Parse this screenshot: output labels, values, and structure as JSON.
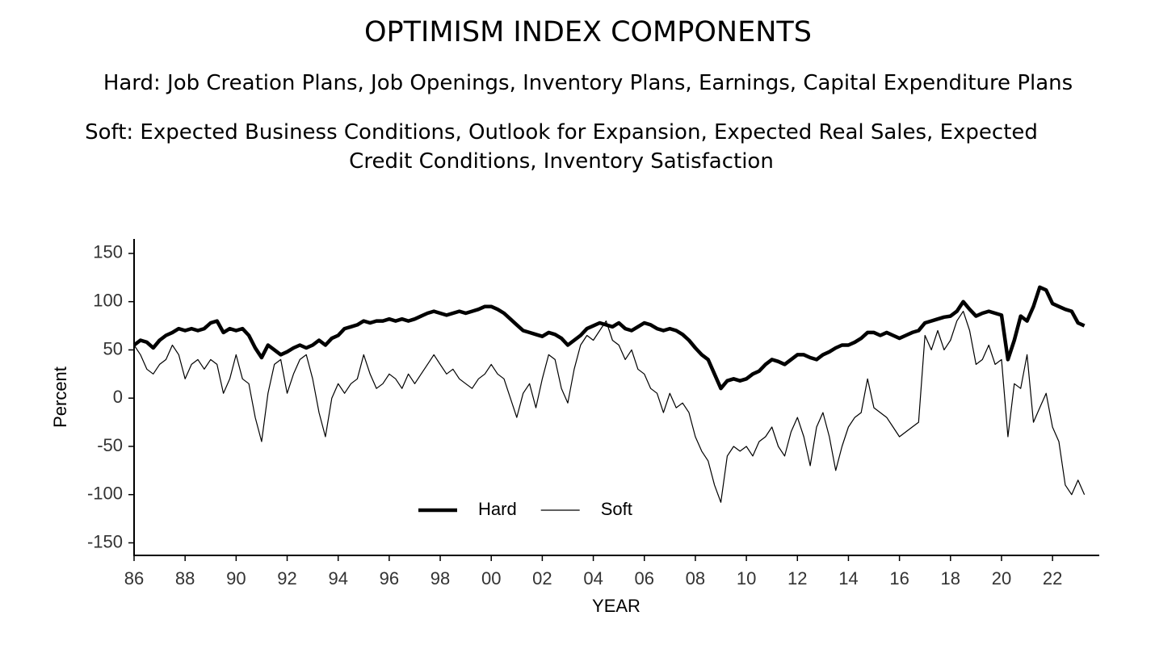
{
  "chart_data": {
    "type": "line",
    "title": "OPTIMISM INDEX COMPONENTS",
    "subtitle": [
      "Hard: Job Creation Plans, Job Openings, Inventory Plans, Earnings, Capital Expenditure Plans",
      "Soft: Expected Business Conditions, Outlook for Expansion, Expected Real Sales, Expected Credit Conditions, Inventory Satisfaction"
    ],
    "x_label": "YEAR",
    "y_label": "Percent",
    "xlim": [
      1986,
      2023.8
    ],
    "ylim": [
      -163,
      165
    ],
    "xticks": [
      {
        "value": 1986,
        "label": "86"
      },
      {
        "value": 1988,
        "label": "88"
      },
      {
        "value": 1990,
        "label": "90"
      },
      {
        "value": 1992,
        "label": "92"
      },
      {
        "value": 1994,
        "label": "94"
      },
      {
        "value": 1996,
        "label": "96"
      },
      {
        "value": 1998,
        "label": "98"
      },
      {
        "value": 2000,
        "label": "00"
      },
      {
        "value": 2002,
        "label": "02"
      },
      {
        "value": 2004,
        "label": "04"
      },
      {
        "value": 2006,
        "label": "06"
      },
      {
        "value": 2008,
        "label": "08"
      },
      {
        "value": 2010,
        "label": "10"
      },
      {
        "value": 2012,
        "label": "12"
      },
      {
        "value": 2014,
        "label": "14"
      },
      {
        "value": 2016,
        "label": "16"
      },
      {
        "value": 2018,
        "label": "18"
      },
      {
        "value": 2020,
        "label": "20"
      },
      {
        "value": 2022,
        "label": "22"
      }
    ],
    "yticks": [
      150,
      100,
      50,
      0,
      -50,
      -100,
      -150
    ],
    "grid": false,
    "legend": "bottom",
    "x": [
      1986,
      1986.25,
      1986.5,
      1986.75,
      1987,
      1987.25,
      1987.5,
      1987.75,
      1988,
      1988.25,
      1988.5,
      1988.75,
      1989,
      1989.25,
      1989.5,
      1989.75,
      1990,
      1990.25,
      1990.5,
      1990.75,
      1991,
      1991.25,
      1991.5,
      1991.75,
      1992,
      1992.25,
      1992.5,
      1992.75,
      1993,
      1993.25,
      1993.5,
      1993.75,
      1994,
      1994.25,
      1994.5,
      1994.75,
      1995,
      1995.25,
      1995.5,
      1995.75,
      1996,
      1996.25,
      1996.5,
      1996.75,
      1997,
      1997.25,
      1997.5,
      1997.75,
      1998,
      1998.25,
      1998.5,
      1998.75,
      1999,
      1999.25,
      1999.5,
      1999.75,
      2000,
      2000.25,
      2000.5,
      2000.75,
      2001,
      2001.25,
      2001.5,
      2001.75,
      2002,
      2002.25,
      2002.5,
      2002.75,
      2003,
      2003.25,
      2003.5,
      2003.75,
      2004,
      2004.25,
      2004.5,
      2004.75,
      2005,
      2005.25,
      2005.5,
      2005.75,
      2006,
      2006.25,
      2006.5,
      2006.75,
      2007,
      2007.25,
      2007.5,
      2007.75,
      2008,
      2008.25,
      2008.5,
      2008.75,
      2009,
      2009.25,
      2009.5,
      2009.75,
      2010,
      2010.25,
      2010.5,
      2010.75,
      2011,
      2011.25,
      2011.5,
      2011.75,
      2012,
      2012.25,
      2012.5,
      2012.75,
      2013,
      2013.25,
      2013.5,
      2013.75,
      2014,
      2014.25,
      2014.5,
      2014.75,
      2015,
      2015.25,
      2015.5,
      2015.75,
      2016,
      2016.25,
      2016.5,
      2016.75,
      2017,
      2017.25,
      2017.5,
      2017.75,
      2018,
      2018.25,
      2018.5,
      2018.75,
      2019,
      2019.25,
      2019.5,
      2019.75,
      2020,
      2020.25,
      2020.5,
      2020.75,
      2021,
      2021.25,
      2021.5,
      2021.75,
      2022,
      2022.25,
      2022.5,
      2022.75,
      2023,
      2023.25
    ],
    "series": [
      {
        "name": "Hard",
        "color": "#000000",
        "line_width": 4.5,
        "values": [
          55,
          60,
          58,
          52,
          60,
          65,
          68,
          72,
          70,
          72,
          70,
          72,
          78,
          80,
          68,
          72,
          70,
          72,
          65,
          52,
          42,
          55,
          50,
          45,
          48,
          52,
          55,
          52,
          55,
          60,
          55,
          62,
          65,
          72,
          74,
          76,
          80,
          78,
          80,
          80,
          82,
          80,
          82,
          80,
          82,
          85,
          88,
          90,
          88,
          86,
          88,
          90,
          88,
          90,
          92,
          95,
          95,
          92,
          88,
          82,
          76,
          70,
          68,
          66,
          64,
          68,
          66,
          62,
          55,
          60,
          65,
          72,
          75,
          78,
          76,
          74,
          78,
          72,
          70,
          74,
          78,
          76,
          72,
          70,
          72,
          70,
          66,
          60,
          52,
          45,
          40,
          25,
          10,
          18,
          20,
          18,
          20,
          25,
          28,
          35,
          40,
          38,
          35,
          40,
          45,
          45,
          42,
          40,
          45,
          48,
          52,
          55,
          55,
          58,
          62,
          68,
          68,
          65,
          68,
          65,
          62,
          65,
          68,
          70,
          78,
          80,
          82,
          84,
          85,
          90,
          100,
          92,
          85,
          88,
          90,
          88,
          86,
          40,
          60,
          85,
          80,
          95,
          115,
          112,
          98,
          95,
          92,
          90,
          78,
          75
        ]
      },
      {
        "name": "Soft",
        "color": "#000000",
        "line_width": 1.2,
        "values": [
          55,
          45,
          30,
          25,
          35,
          40,
          55,
          45,
          20,
          35,
          40,
          30,
          40,
          35,
          5,
          20,
          45,
          20,
          15,
          -20,
          -45,
          5,
          35,
          40,
          5,
          25,
          40,
          45,
          20,
          -15,
          -40,
          0,
          15,
          5,
          15,
          20,
          45,
          25,
          10,
          15,
          25,
          20,
          10,
          25,
          15,
          25,
          35,
          45,
          35,
          25,
          30,
          20,
          15,
          10,
          20,
          25,
          35,
          25,
          20,
          0,
          -20,
          5,
          15,
          -10,
          20,
          45,
          40,
          10,
          -5,
          30,
          55,
          65,
          60,
          70,
          80,
          60,
          55,
          40,
          50,
          30,
          25,
          10,
          5,
          -15,
          5,
          -10,
          -5,
          -15,
          -40,
          -55,
          -65,
          -90,
          -108,
          -60,
          -50,
          -55,
          -50,
          -60,
          -45,
          -40,
          -30,
          -50,
          -60,
          -35,
          -20,
          -40,
          -70,
          -30,
          -15,
          -40,
          -75,
          -50,
          -30,
          -20,
          -15,
          20,
          -10,
          -15,
          -20,
          -30,
          -40,
          -35,
          -30,
          -25,
          65,
          50,
          70,
          50,
          60,
          80,
          90,
          70,
          35,
          40,
          55,
          35,
          40,
          -40,
          15,
          10,
          45,
          -25,
          -10,
          5,
          -30,
          -45,
          -90,
          -100,
          -85,
          -100
        ]
      }
    ]
  }
}
